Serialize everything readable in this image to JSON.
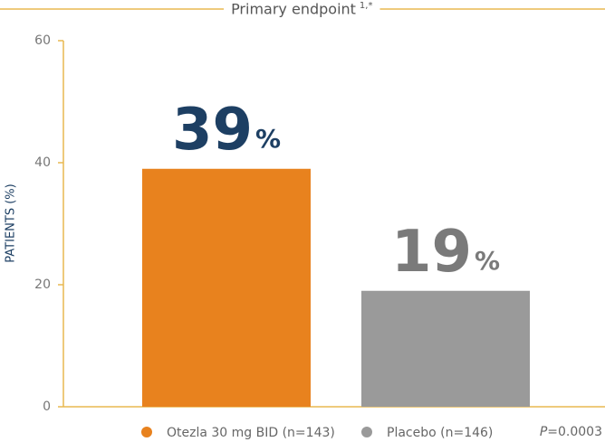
{
  "chart_data": {
    "type": "bar",
    "title": "Primary endpoint",
    "title_superscript": "1,*",
    "y_label": "PATIENTS (%)",
    "categories": [
      "Otezla 30 mg BID (n=143)",
      "Placebo (n=146)"
    ],
    "values": [
      39,
      19
    ],
    "value_labels": [
      "39%",
      "19%"
    ],
    "colors": [
      "#e8821e",
      "#9a9a9a"
    ],
    "label_colors": [
      "#1d3f63",
      "#7a7a7a"
    ],
    "ylim": [
      0,
      60
    ],
    "yticks": [
      0,
      20,
      40,
      60
    ],
    "grid": false,
    "annotation": "P=0.0003"
  }
}
